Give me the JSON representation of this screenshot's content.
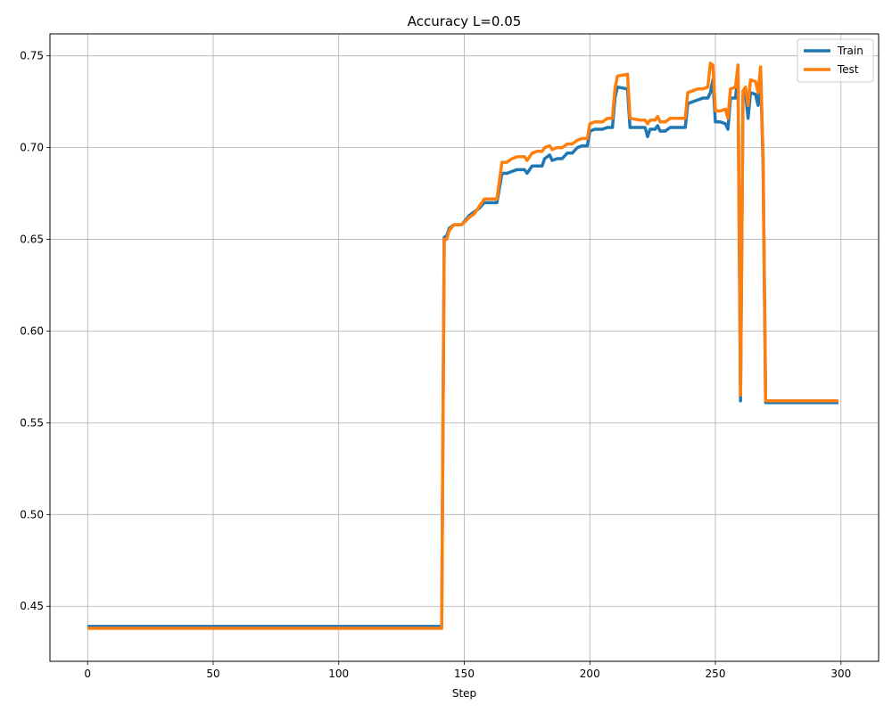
{
  "chart_data": {
    "type": "line",
    "title": "Accuracy L=0.05",
    "xlabel": "Step",
    "ylabel": "",
    "xlim": [
      -15,
      315
    ],
    "ylim": [
      0.42,
      0.762
    ],
    "xticks": [
      0,
      50,
      100,
      150,
      200,
      250,
      300
    ],
    "yticks": [
      0.45,
      0.5,
      0.55,
      0.6,
      0.65,
      0.7,
      0.75
    ],
    "ytick_labels": [
      "0.45",
      "0.50",
      "0.55",
      "0.60",
      "0.65",
      "0.70",
      "0.75"
    ],
    "grid": true,
    "legend_position": "top-right",
    "series": [
      {
        "name": "Train",
        "color": "#1f77b4",
        "points": [
          [
            0,
            0.439
          ],
          [
            140,
            0.439
          ],
          [
            141,
            0.439
          ],
          [
            142,
            0.651
          ],
          [
            143,
            0.652
          ],
          [
            144,
            0.656
          ],
          [
            146,
            0.658
          ],
          [
            149,
            0.658
          ],
          [
            152,
            0.663
          ],
          [
            154,
            0.665
          ],
          [
            156,
            0.667
          ],
          [
            158,
            0.67
          ],
          [
            163,
            0.67
          ],
          [
            165,
            0.686
          ],
          [
            167,
            0.686
          ],
          [
            169,
            0.687
          ],
          [
            171,
            0.688
          ],
          [
            174,
            0.688
          ],
          [
            175,
            0.686
          ],
          [
            177,
            0.69
          ],
          [
            179,
            0.69
          ],
          [
            181,
            0.69
          ],
          [
            182,
            0.694
          ],
          [
            184,
            0.696
          ],
          [
            185,
            0.693
          ],
          [
            187,
            0.694
          ],
          [
            189,
            0.694
          ],
          [
            191,
            0.697
          ],
          [
            193,
            0.697
          ],
          [
            195,
            0.7
          ],
          [
            197,
            0.701
          ],
          [
            199,
            0.701
          ],
          [
            200,
            0.709
          ],
          [
            202,
            0.71
          ],
          [
            205,
            0.71
          ],
          [
            207,
            0.711
          ],
          [
            209,
            0.711
          ],
          [
            210,
            0.727
          ],
          [
            211,
            0.733
          ],
          [
            215,
            0.732
          ],
          [
            216,
            0.711
          ],
          [
            220,
            0.711
          ],
          [
            222,
            0.711
          ],
          [
            223,
            0.706
          ],
          [
            224,
            0.71
          ],
          [
            226,
            0.71
          ],
          [
            227,
            0.712
          ],
          [
            228,
            0.709
          ],
          [
            230,
            0.709
          ],
          [
            232,
            0.711
          ],
          [
            236,
            0.711
          ],
          [
            238,
            0.711
          ],
          [
            239,
            0.724
          ],
          [
            241,
            0.725
          ],
          [
            243,
            0.726
          ],
          [
            245,
            0.727
          ],
          [
            247,
            0.727
          ],
          [
            248,
            0.73
          ],
          [
            249,
            0.737
          ],
          [
            250,
            0.714
          ],
          [
            252,
            0.714
          ],
          [
            254,
            0.713
          ],
          [
            255,
            0.71
          ],
          [
            256,
            0.727
          ],
          [
            258,
            0.727
          ],
          [
            259,
            0.74
          ],
          [
            260,
            0.562
          ],
          [
            261,
            0.728
          ],
          [
            262,
            0.73
          ],
          [
            263,
            0.716
          ],
          [
            264,
            0.73
          ],
          [
            266,
            0.729
          ],
          [
            267,
            0.723
          ],
          [
            268,
            0.741
          ],
          [
            269,
            0.69
          ],
          [
            270,
            0.561
          ],
          [
            275,
            0.561
          ],
          [
            299,
            0.561
          ]
        ]
      },
      {
        "name": "Test",
        "color": "#ff7f0e",
        "points": [
          [
            0,
            0.438
          ],
          [
            140,
            0.438
          ],
          [
            141,
            0.438
          ],
          [
            142,
            0.65
          ],
          [
            143,
            0.65
          ],
          [
            144,
            0.655
          ],
          [
            146,
            0.658
          ],
          [
            149,
            0.658
          ],
          [
            152,
            0.662
          ],
          [
            154,
            0.664
          ],
          [
            156,
            0.668
          ],
          [
            158,
            0.672
          ],
          [
            163,
            0.672
          ],
          [
            165,
            0.692
          ],
          [
            167,
            0.692
          ],
          [
            169,
            0.694
          ],
          [
            171,
            0.695
          ],
          [
            174,
            0.695
          ],
          [
            175,
            0.693
          ],
          [
            177,
            0.697
          ],
          [
            179,
            0.698
          ],
          [
            181,
            0.698
          ],
          [
            182,
            0.7
          ],
          [
            184,
            0.701
          ],
          [
            185,
            0.699
          ],
          [
            187,
            0.7
          ],
          [
            189,
            0.7
          ],
          [
            191,
            0.702
          ],
          [
            193,
            0.702
          ],
          [
            195,
            0.704
          ],
          [
            197,
            0.705
          ],
          [
            199,
            0.705
          ],
          [
            200,
            0.713
          ],
          [
            202,
            0.714
          ],
          [
            205,
            0.714
          ],
          [
            207,
            0.716
          ],
          [
            209,
            0.716
          ],
          [
            210,
            0.732
          ],
          [
            211,
            0.739
          ],
          [
            215,
            0.74
          ],
          [
            216,
            0.716
          ],
          [
            220,
            0.715
          ],
          [
            222,
            0.715
          ],
          [
            223,
            0.713
          ],
          [
            224,
            0.715
          ],
          [
            226,
            0.715
          ],
          [
            227,
            0.717
          ],
          [
            228,
            0.714
          ],
          [
            230,
            0.714
          ],
          [
            232,
            0.716
          ],
          [
            236,
            0.716
          ],
          [
            238,
            0.716
          ],
          [
            239,
            0.73
          ],
          [
            241,
            0.731
          ],
          [
            243,
            0.732
          ],
          [
            245,
            0.732
          ],
          [
            247,
            0.733
          ],
          [
            248,
            0.746
          ],
          [
            249,
            0.745
          ],
          [
            250,
            0.72
          ],
          [
            252,
            0.72
          ],
          [
            254,
            0.721
          ],
          [
            255,
            0.716
          ],
          [
            256,
            0.732
          ],
          [
            258,
            0.733
          ],
          [
            259,
            0.745
          ],
          [
            260,
            0.565
          ],
          [
            261,
            0.731
          ],
          [
            262,
            0.733
          ],
          [
            263,
            0.723
          ],
          [
            264,
            0.737
          ],
          [
            266,
            0.736
          ],
          [
            267,
            0.73
          ],
          [
            268,
            0.744
          ],
          [
            269,
            0.695
          ],
          [
            270,
            0.562
          ],
          [
            275,
            0.562
          ],
          [
            299,
            0.562
          ]
        ]
      }
    ]
  }
}
